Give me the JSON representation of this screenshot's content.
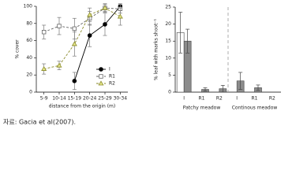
{
  "chart_data": [
    {
      "type": "line",
      "ylabel": "% cover",
      "xlabel": "distance from the origin (m)",
      "categories": [
        "5-9",
        "10-14",
        "15-19",
        "20-24",
        "25-29",
        "30-34"
      ],
      "ylim": [
        0,
        100
      ],
      "yticks": [
        0,
        20,
        40,
        60,
        80,
        100
      ],
      "series": [
        {
          "name": "I",
          "color": "#000000",
          "marker": "circle",
          "dashed": false,
          "values": [
            null,
            null,
            13,
            66,
            79,
            100
          ],
          "errors": [
            null,
            null,
            10,
            13,
            13,
            3
          ]
        },
        {
          "name": "R1",
          "color": "#666666",
          "marker": "square",
          "dashed": true,
          "values": [
            70,
            77,
            74,
            86,
            98,
            97
          ],
          "errors": [
            8,
            10,
            12,
            8,
            5,
            5
          ]
        },
        {
          "name": "R2",
          "color": "#8a8a2a",
          "marker": "triangle",
          "dashed": true,
          "values": [
            27,
            31,
            56,
            90,
            98,
            88
          ],
          "errors": [
            6,
            5,
            14,
            8,
            4,
            10
          ]
        }
      ]
    },
    {
      "type": "bar",
      "ylabel": "% leaf with marks shoot⁻¹",
      "categories": [
        "I",
        "R1",
        "R2",
        "I",
        "R1",
        "R2"
      ],
      "group_labels": [
        "Patchy meadow",
        "Continous meadow"
      ],
      "ylim": [
        0,
        25
      ],
      "yticks": [
        0,
        5,
        10,
        15,
        20,
        25
      ],
      "series": [
        {
          "color": "#ffffff",
          "values": [
            17.5,
            null,
            null,
            null,
            null,
            null
          ],
          "errors": [
            6,
            null,
            null,
            null,
            null,
            null
          ]
        },
        {
          "color": "#8c8c8c",
          "values": [
            15,
            0.8,
            1,
            3.3,
            1.3,
            null
          ],
          "errors": [
            3.5,
            0.5,
            1,
            2.5,
            0.8,
            null
          ]
        }
      ]
    }
  ],
  "caption": "자료: Gacia et al(2007)."
}
